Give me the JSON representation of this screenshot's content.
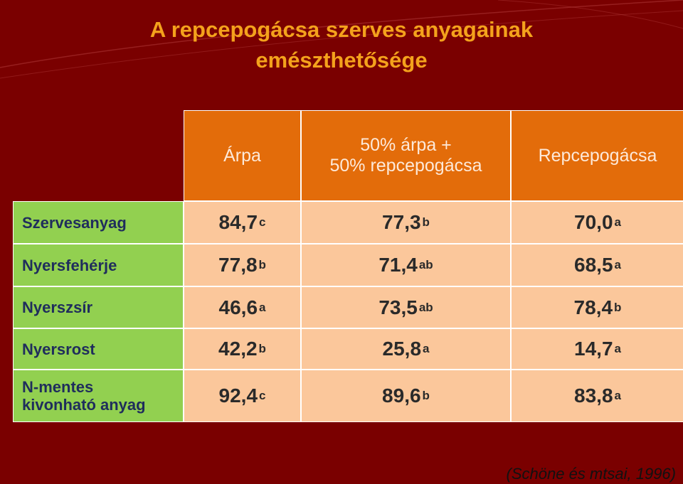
{
  "header": {
    "title": "A repcepogácsa szerves anyagainak\nemészthetősége"
  },
  "table": {
    "columns": [
      "Árpa",
      "50% árpa +\n50% repcepogácsa",
      "Repcepogácsa"
    ],
    "rows": [
      {
        "label": "Szervesanyag",
        "cells": [
          {
            "value": "84,7",
            "sup": "c"
          },
          {
            "value": "77,3",
            "sup": "b"
          },
          {
            "value": "70,0",
            "sup": "a"
          }
        ]
      },
      {
        "label": "Nyersfehérje",
        "cells": [
          {
            "value": "77,8",
            "sup": "b"
          },
          {
            "value": "71,4",
            "sup": "ab"
          },
          {
            "value": "68,5",
            "sup": "a"
          }
        ]
      },
      {
        "label": "Nyerszsír",
        "cells": [
          {
            "value": "46,6",
            "sup": "a"
          },
          {
            "value": "73,5",
            "sup": "ab"
          },
          {
            "value": "78,4",
            "sup": "b"
          }
        ]
      },
      {
        "label": "Nyersrost",
        "cells": [
          {
            "value": "42,2",
            "sup": "b"
          },
          {
            "value": "25,8",
            "sup": "a"
          },
          {
            "value": "14,7",
            "sup": "a"
          }
        ]
      },
      {
        "label": "N-mentes\nkivonható anyag",
        "cells": [
          {
            "value": "92,4",
            "sup": "c"
          },
          {
            "value": "89,6",
            "sup": "b"
          },
          {
            "value": "83,8",
            "sup": "a"
          }
        ]
      }
    ]
  },
  "footer": {
    "citation": "(Schöne és mtsai, 1996)"
  }
}
